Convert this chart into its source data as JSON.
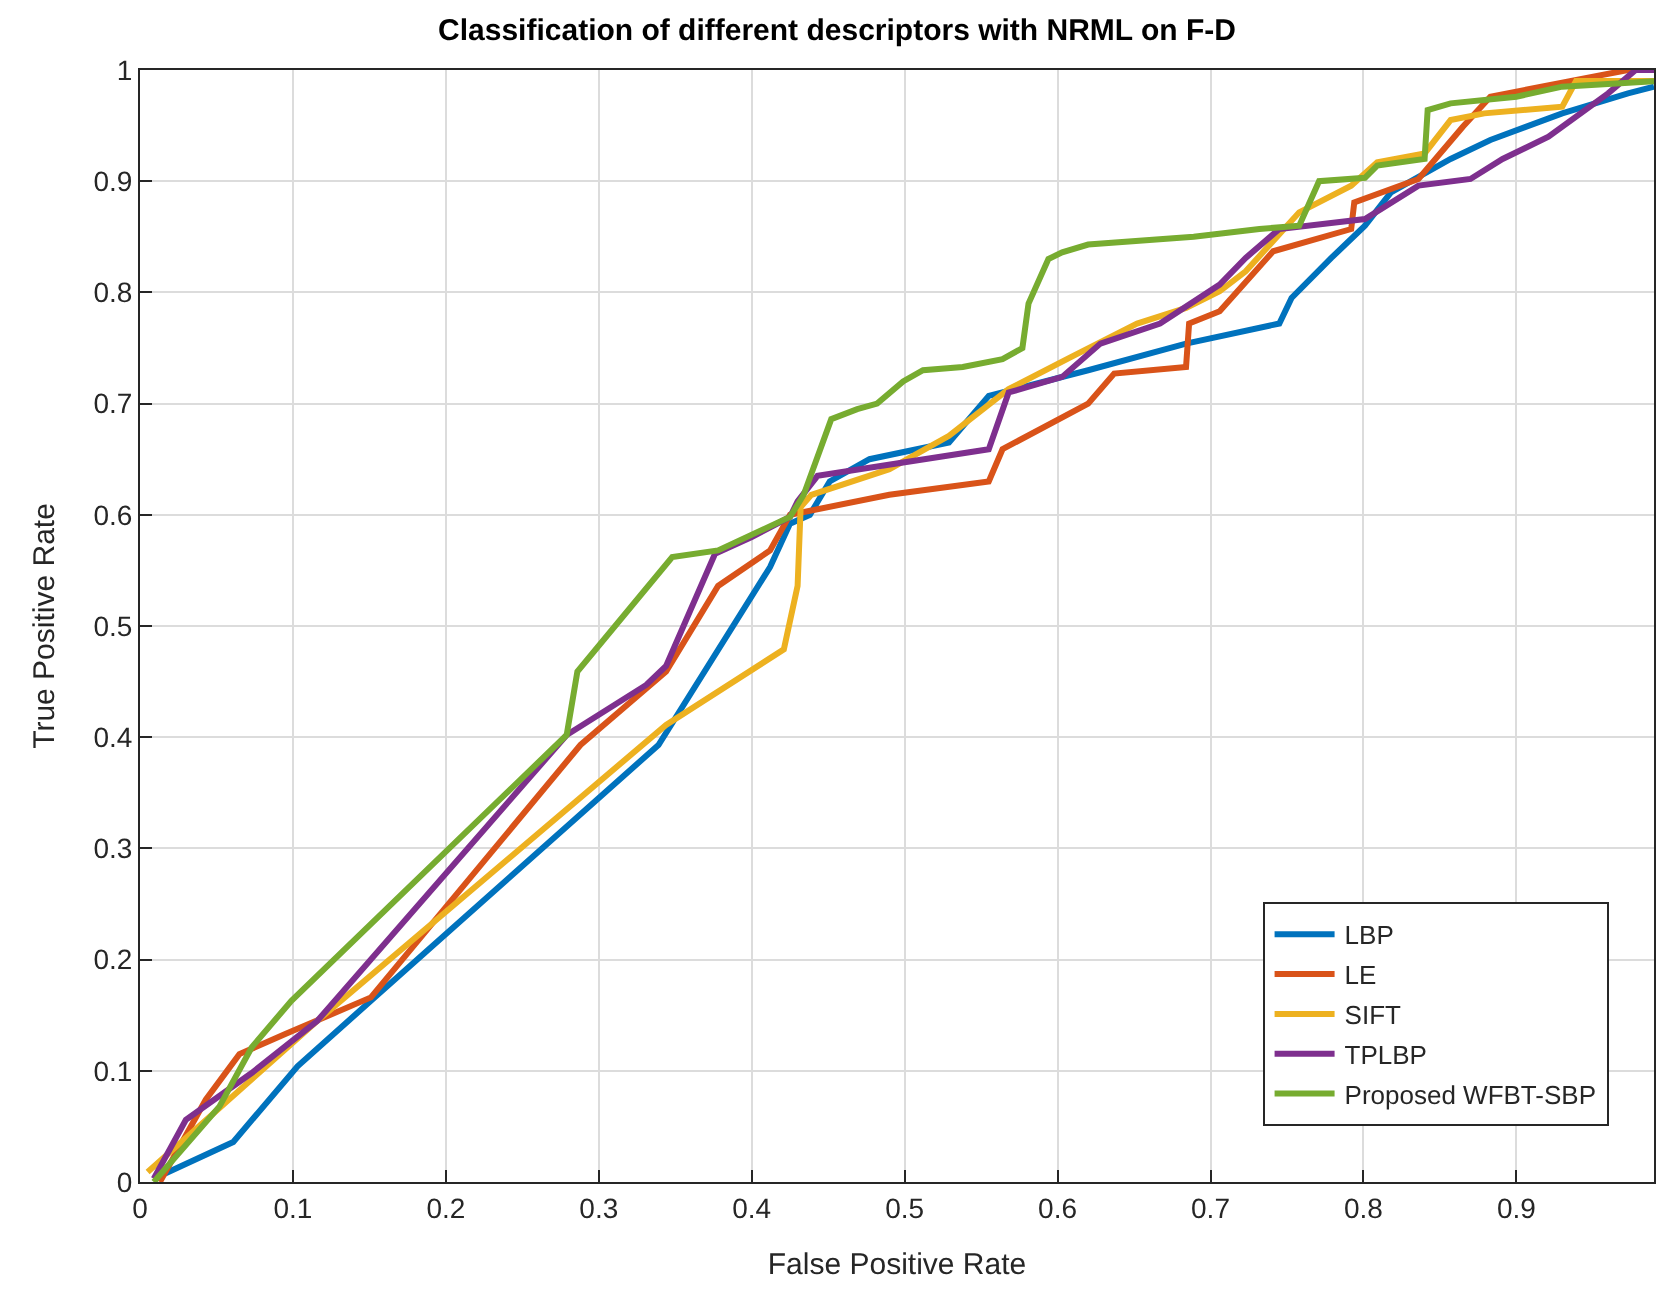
{
  "chart_data": {
    "type": "line",
    "title": "Classification of different descriptors with NRML on F-D",
    "xlabel": "False Positive Rate",
    "ylabel": "True Positive Rate",
    "xlim": [
      0,
      0.99
    ],
    "ylim": [
      0,
      1
    ],
    "xticks": [
      0,
      0.1,
      0.2,
      0.3,
      0.4,
      0.5,
      0.6,
      0.7,
      0.8,
      0.9
    ],
    "yticks": [
      0,
      0.1,
      0.2,
      0.3,
      0.4,
      0.5,
      0.6,
      0.7,
      0.8,
      0.9,
      1
    ],
    "grid": true,
    "legend": "bottom right",
    "marker": "none",
    "line_style": "solid",
    "series": [
      {
        "name": "LBP",
        "color": "#0072bd",
        "x": [
          0.009,
          0.061,
          0.103,
          0.151,
          0.339,
          0.412,
          0.425,
          0.438,
          0.451,
          0.477,
          0.529,
          0.555,
          0.62,
          0.684,
          0.745,
          0.753,
          0.779,
          0.801,
          0.818,
          0.857,
          0.883,
          0.93,
          0.973,
          0.99
        ],
        "values": [
          0.003,
          0.036,
          0.104,
          0.163,
          0.393,
          0.553,
          0.592,
          0.6,
          0.63,
          0.65,
          0.665,
          0.707,
          0.73,
          0.754,
          0.772,
          0.795,
          0.831,
          0.86,
          0.89,
          0.92,
          0.937,
          0.961,
          0.979,
          0.985
        ]
      },
      {
        "name": "LE",
        "color": "#d95319",
        "x": [
          0.013,
          0.043,
          0.065,
          0.095,
          0.151,
          0.288,
          0.344,
          0.378,
          0.412,
          0.425,
          0.49,
          0.555,
          0.564,
          0.62,
          0.637,
          0.684,
          0.686,
          0.706,
          0.741,
          0.792,
          0.794,
          0.836,
          0.865,
          0.883,
          0.935,
          0.973,
          0.99
        ],
        "values": [
          0.0,
          0.074,
          0.115,
          0.133,
          0.166,
          0.393,
          0.459,
          0.536,
          0.568,
          0.6,
          0.618,
          0.63,
          0.659,
          0.7,
          0.727,
          0.733,
          0.772,
          0.783,
          0.837,
          0.857,
          0.881,
          0.902,
          0.949,
          0.976,
          0.99,
          1.0,
          1.0
        ]
      },
      {
        "name": "SIFT",
        "color": "#edb120",
        "x": [
          0.005,
          0.116,
          0.344,
          0.421,
          0.43,
          0.432,
          0.439,
          0.49,
          0.529,
          0.568,
          0.609,
          0.652,
          0.684,
          0.706,
          0.723,
          0.758,
          0.792,
          0.809,
          0.84,
          0.857,
          0.879,
          0.93,
          0.939,
          0.99
        ],
        "values": [
          0.009,
          0.145,
          0.411,
          0.479,
          0.536,
          0.607,
          0.618,
          0.641,
          0.671,
          0.713,
          0.742,
          0.772,
          0.786,
          0.801,
          0.819,
          0.872,
          0.896,
          0.917,
          0.925,
          0.955,
          0.961,
          0.967,
          0.99,
          0.99
        ]
      },
      {
        "name": "TPLBP",
        "color": "#7e2f8e",
        "x": [
          0.009,
          0.03,
          0.073,
          0.116,
          0.279,
          0.331,
          0.344,
          0.376,
          0.4,
          0.425,
          0.43,
          0.443,
          0.499,
          0.555,
          0.568,
          0.603,
          0.628,
          0.667,
          0.706,
          0.723,
          0.745,
          0.801,
          0.836,
          0.87,
          0.891,
          0.921,
          0.96,
          0.978,
          0.99
        ],
        "values": [
          0.003,
          0.056,
          0.098,
          0.145,
          0.402,
          0.447,
          0.464,
          0.565,
          0.58,
          0.598,
          0.612,
          0.635,
          0.647,
          0.659,
          0.71,
          0.724,
          0.754,
          0.772,
          0.807,
          0.831,
          0.857,
          0.866,
          0.896,
          0.902,
          0.92,
          0.94,
          0.979,
          1.0,
          1.0
        ]
      },
      {
        "name": "Proposed WFBT-SBP",
        "color": "#77ac30",
        "x": [
          0.009,
          0.052,
          0.073,
          0.099,
          0.279,
          0.286,
          0.348,
          0.378,
          0.425,
          0.434,
          0.452,
          0.469,
          0.482,
          0.499,
          0.512,
          0.538,
          0.564,
          0.577,
          0.581,
          0.594,
          0.603,
          0.62,
          0.689,
          0.732,
          0.758,
          0.771,
          0.801,
          0.809,
          0.84,
          0.842,
          0.857,
          0.9,
          0.93,
          0.99
        ],
        "values": [
          0.0,
          0.068,
          0.121,
          0.163,
          0.402,
          0.459,
          0.562,
          0.568,
          0.598,
          0.618,
          0.686,
          0.695,
          0.7,
          0.72,
          0.73,
          0.733,
          0.74,
          0.75,
          0.79,
          0.83,
          0.836,
          0.843,
          0.85,
          0.857,
          0.86,
          0.9,
          0.903,
          0.914,
          0.92,
          0.964,
          0.97,
          0.976,
          0.985,
          0.99
        ]
      }
    ]
  }
}
